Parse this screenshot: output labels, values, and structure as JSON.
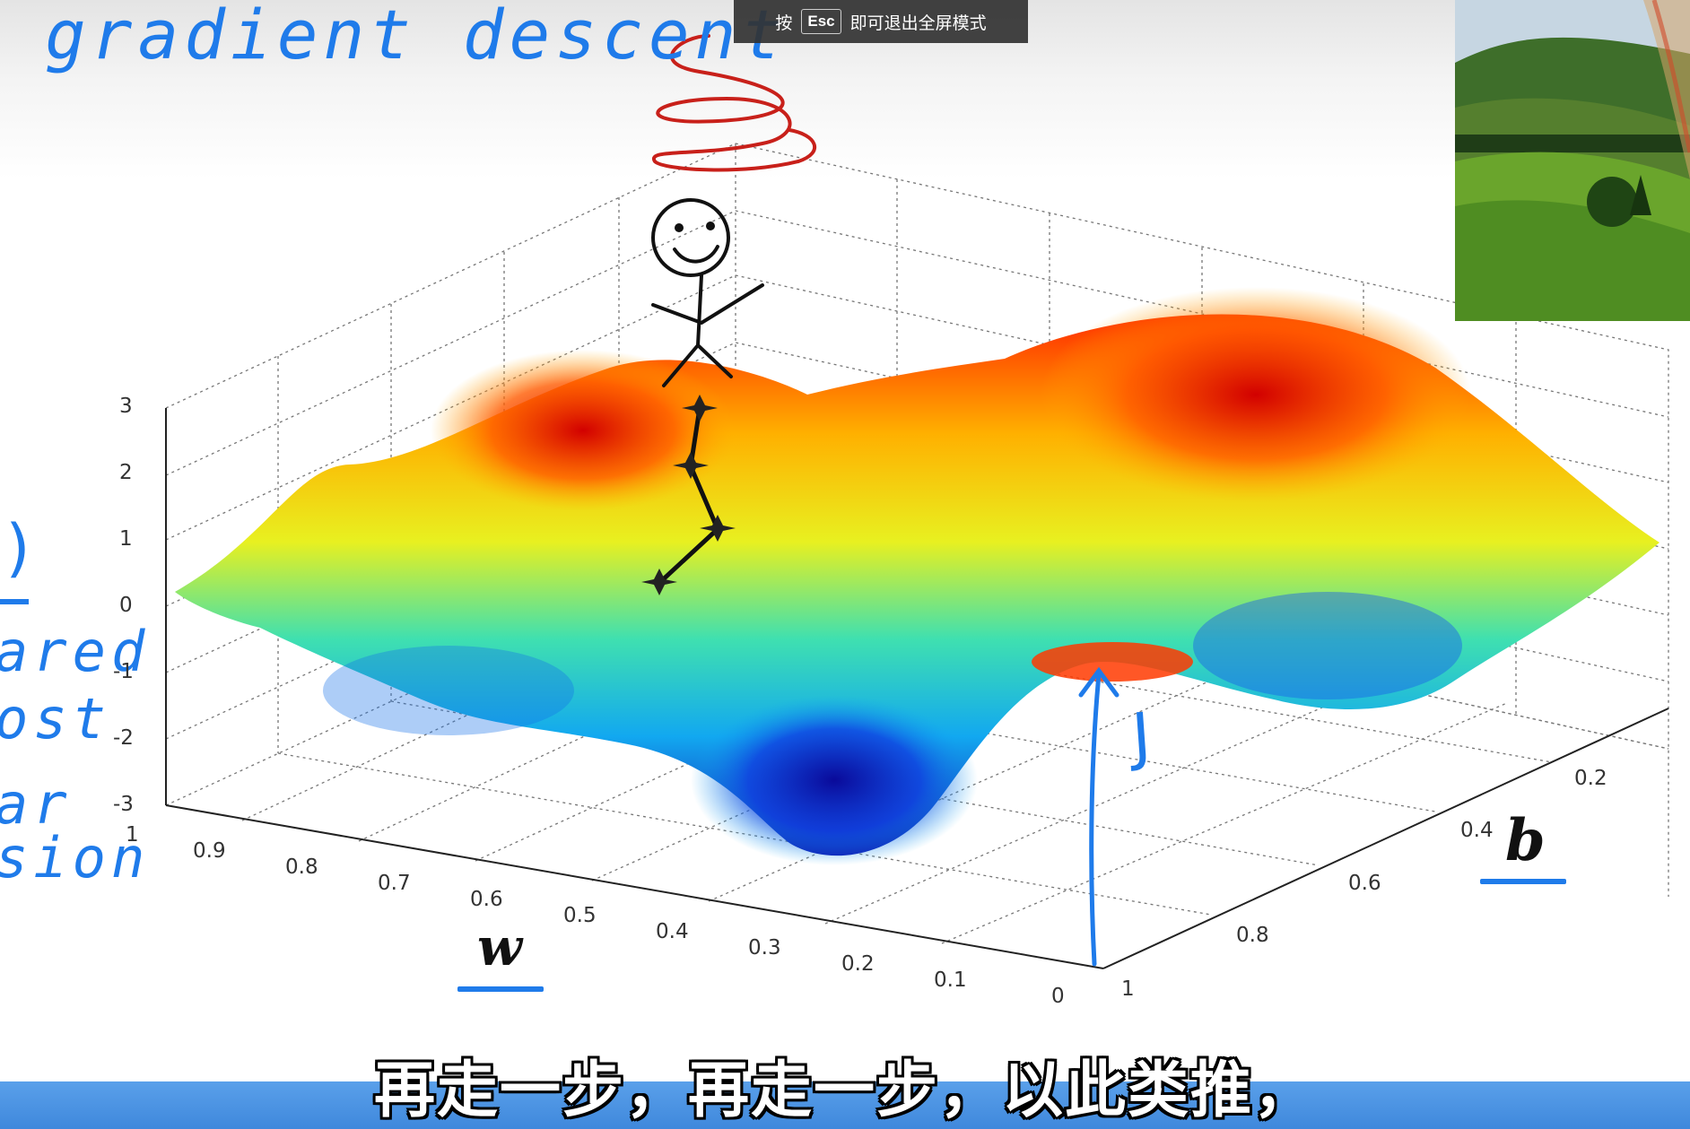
{
  "slide": {
    "title": "gradient descent",
    "side_notes": {
      "paren": ")",
      "lines": [
        "ared",
        "ost",
        "ar",
        "sion"
      ]
    },
    "axis_labels": {
      "w": "w",
      "b": "b",
      "j": "J"
    },
    "z_ticks": [
      "3",
      "2",
      "1",
      "0",
      "-1",
      "-2",
      "-3"
    ],
    "w_ticks": [
      "1",
      "0.9",
      "0.8",
      "0.7",
      "0.6",
      "0.5",
      "0.4",
      "0.3",
      "0.2",
      "0.1",
      "0"
    ],
    "b_ticks": [
      "1",
      "0.8",
      "0.6",
      "0.4",
      "0.2"
    ]
  },
  "fullscreen_hint": {
    "prefix": "按",
    "key": "Esc",
    "suffix": "即可退出全屏模式"
  },
  "subtitle": {
    "current": "再走一步，再走一步，以此类推，"
  },
  "colors": {
    "ink_blue": "#1f7bea",
    "subtitle_band": "#4a92e2"
  },
  "icons": {
    "stick_figure": "stick-figure-icon",
    "dizzy_swirl": "dizzy-swirl-icon",
    "step_star": "star-icon",
    "thumbnail": "landscape-rainbow-thumbnail"
  }
}
